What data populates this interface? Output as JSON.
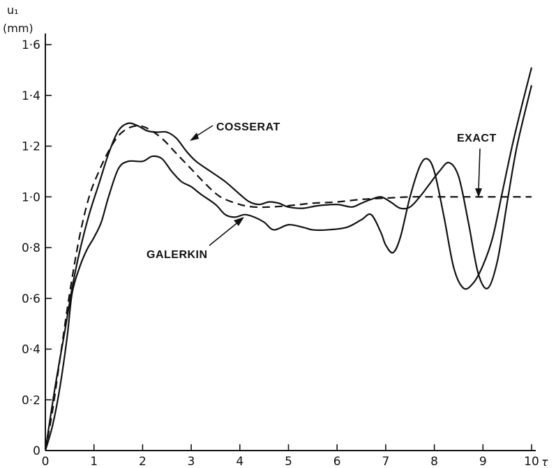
{
  "chart_data": {
    "type": "line",
    "ylabel_line1": "u₁",
    "ylabel_line2": "(mm)",
    "xlabel": "τ",
    "xlim": [
      0,
      10
    ],
    "ylim": [
      0,
      1.6
    ],
    "x_ticks": [
      0,
      1,
      2,
      3,
      4,
      5,
      6,
      7,
      8,
      9,
      10
    ],
    "x_tick_labels": [
      "0",
      "1",
      "2",
      "3",
      "4",
      "5",
      "6",
      "7",
      "8",
      "9",
      "10"
    ],
    "y_ticks": [
      0,
      0.2,
      0.4,
      0.6,
      0.8,
      1.0,
      1.2,
      1.4,
      1.6
    ],
    "y_tick_labels": [
      "0",
      "0·2",
      "0·4",
      "0·6",
      "0·8",
      "1·0",
      "1·2",
      "1·4",
      "1·6"
    ],
    "grid": false,
    "series": [
      {
        "name": "EXACT",
        "style": "dashed",
        "x": [
          0,
          0.15,
          0.3,
          0.5,
          0.7,
          0.9,
          1.1,
          1.3,
          1.5,
          1.7,
          1.9,
          2.1,
          2.4,
          2.7,
          3.0,
          3.3,
          3.6,
          4.0,
          4.3,
          4.6,
          5.0,
          5.5,
          6.0,
          6.5,
          7.0,
          7.5,
          8.0,
          8.5,
          9.0,
          9.5,
          10.0
        ],
        "y": [
          0,
          0.16,
          0.36,
          0.62,
          0.84,
          1.0,
          1.1,
          1.18,
          1.24,
          1.27,
          1.28,
          1.27,
          1.23,
          1.17,
          1.11,
          1.05,
          1.0,
          0.97,
          0.96,
          0.96,
          0.965,
          0.975,
          0.98,
          0.99,
          0.995,
          1.0,
          1.0,
          1.0,
          1.0,
          1.0,
          1.0
        ]
      },
      {
        "name": "COSSERAT",
        "style": "solid",
        "x": [
          0,
          0.2,
          0.4,
          0.55,
          0.7,
          0.9,
          1.1,
          1.3,
          1.5,
          1.7,
          1.9,
          2.1,
          2.3,
          2.5,
          2.7,
          2.9,
          3.1,
          3.4,
          3.7,
          4.0,
          4.2,
          4.4,
          4.6,
          4.8,
          5.0,
          5.3,
          5.6,
          6.0,
          6.3,
          6.5,
          6.7,
          6.9,
          7.1,
          7.3,
          7.5,
          7.7,
          7.9,
          8.1,
          8.3,
          8.5,
          8.7,
          8.9,
          9.1,
          9.3,
          9.5,
          9.7,
          10.0
        ],
        "y": [
          0,
          0.25,
          0.47,
          0.64,
          0.78,
          0.93,
          1.05,
          1.17,
          1.26,
          1.29,
          1.28,
          1.26,
          1.255,
          1.255,
          1.23,
          1.18,
          1.14,
          1.1,
          1.06,
          1.01,
          0.98,
          0.97,
          0.98,
          0.975,
          0.96,
          0.955,
          0.965,
          0.97,
          0.96,
          0.975,
          0.99,
          1.0,
          0.98,
          0.955,
          0.96,
          1.0,
          1.05,
          1.1,
          1.135,
          1.08,
          0.9,
          0.7,
          0.64,
          0.75,
          0.98,
          1.2,
          1.44
        ]
      },
      {
        "name": "GALERKIN",
        "style": "solid",
        "x": [
          0,
          0.15,
          0.3,
          0.45,
          0.55,
          0.7,
          0.85,
          1.0,
          1.15,
          1.3,
          1.5,
          1.7,
          2.0,
          2.2,
          2.4,
          2.6,
          2.8,
          3.0,
          3.2,
          3.5,
          3.7,
          3.9,
          4.1,
          4.3,
          4.5,
          4.7,
          5.0,
          5.3,
          5.5,
          5.8,
          6.2,
          6.5,
          6.7,
          6.9,
          7.0,
          7.15,
          7.3,
          7.5,
          7.7,
          7.85,
          8.0,
          8.2,
          8.4,
          8.6,
          8.8,
          9.0,
          9.2,
          9.4,
          9.6,
          9.8,
          10.0
        ],
        "y": [
          0,
          0.1,
          0.25,
          0.45,
          0.62,
          0.72,
          0.79,
          0.84,
          0.9,
          1.0,
          1.11,
          1.14,
          1.14,
          1.16,
          1.15,
          1.1,
          1.06,
          1.04,
          1.01,
          0.97,
          0.93,
          0.92,
          0.93,
          0.92,
          0.9,
          0.87,
          0.89,
          0.88,
          0.87,
          0.87,
          0.88,
          0.91,
          0.93,
          0.86,
          0.81,
          0.78,
          0.84,
          1.0,
          1.12,
          1.15,
          1.1,
          0.92,
          0.72,
          0.64,
          0.66,
          0.73,
          0.84,
          1.02,
          1.2,
          1.36,
          1.51
        ]
      }
    ],
    "annotations": [
      {
        "text": "COSSERAT"
      },
      {
        "text": "EXACT"
      },
      {
        "text": "GALERKIN"
      }
    ]
  }
}
